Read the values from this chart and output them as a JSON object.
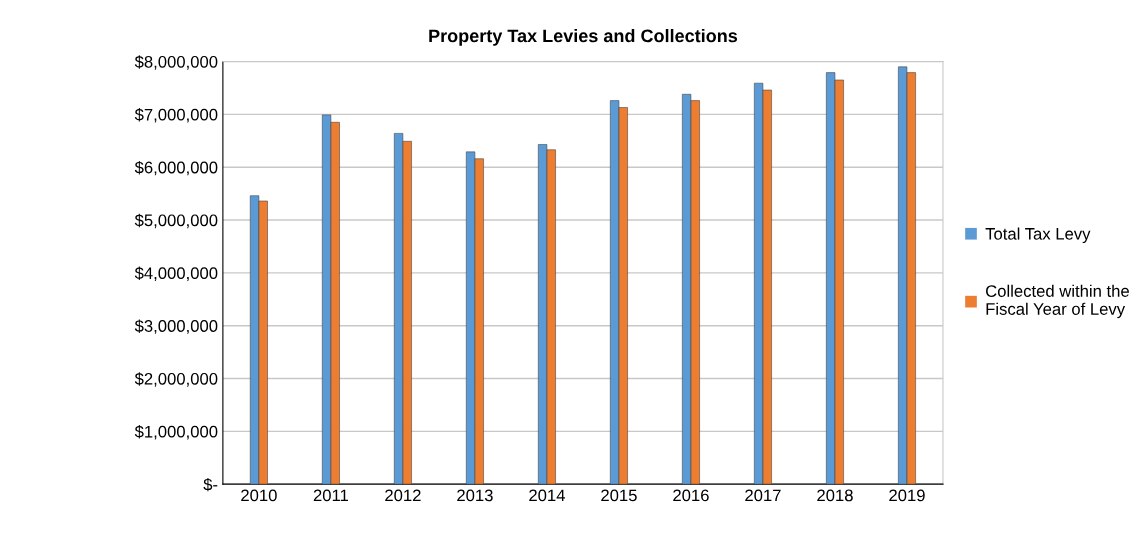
{
  "chart_data": {
    "type": "bar",
    "title": "Property Tax Levies and Collections",
    "categories": [
      "2010",
      "2011",
      "2012",
      "2013",
      "2014",
      "2015",
      "2016",
      "2017",
      "2018",
      "2019"
    ],
    "series": [
      {
        "name": "Total Tax Levy",
        "color": "#5b9bd5",
        "values": [
          5460000,
          6990000,
          6640000,
          6290000,
          6430000,
          7260000,
          7380000,
          7590000,
          7790000,
          7900000
        ]
      },
      {
        "name": "Collected within the Fiscal Year of Levy",
        "color": "#ed7d31",
        "values": [
          5360000,
          6850000,
          6490000,
          6160000,
          6330000,
          7130000,
          7260000,
          7460000,
          7650000,
          7790000
        ]
      }
    ],
    "ylim": [
      0,
      8000000
    ],
    "yticks": [
      {
        "value": 0,
        "label": "$-"
      },
      {
        "value": 1000000,
        "label": "$1,000,000"
      },
      {
        "value": 2000000,
        "label": "$2,000,000"
      },
      {
        "value": 3000000,
        "label": "$3,000,000"
      },
      {
        "value": 4000000,
        "label": "$4,000,000"
      },
      {
        "value": 5000000,
        "label": "$5,000,000"
      },
      {
        "value": 6000000,
        "label": "$6,000,000"
      },
      {
        "value": 7000000,
        "label": "$7,000,000"
      },
      {
        "value": 8000000,
        "label": "$8,000,000"
      }
    ],
    "grid": "y",
    "legend": "right"
  }
}
